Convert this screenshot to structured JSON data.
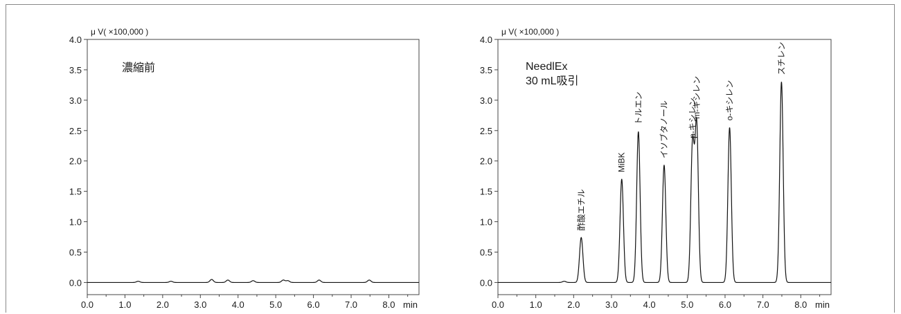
{
  "chart_data": [
    {
      "type": "line",
      "unit_label": "μ V( ×100,000 )",
      "xunit": "min",
      "xlim": [
        0,
        8.8
      ],
      "ylim": [
        -0.2,
        4.0
      ],
      "x_ticks": [
        "0.0",
        "1.0",
        "2.0",
        "3.0",
        "4.0",
        "5.0",
        "6.0",
        "7.0",
        "8.0"
      ],
      "y_ticks": [
        "0.0",
        "0.5",
        "1.0",
        "1.5",
        "2.0",
        "2.5",
        "3.0",
        "3.5",
        "4.0"
      ],
      "annotations": [
        "濃縮前"
      ],
      "series": [
        {
          "baseline": 0.0,
          "peaks": [
            {
              "time": 1.35,
              "height": 0.02
            },
            {
              "time": 2.22,
              "height": 0.02
            },
            {
              "time": 3.3,
              "height": 0.05
            },
            {
              "time": 3.73,
              "height": 0.04
            },
            {
              "time": 4.4,
              "height": 0.03
            },
            {
              "time": 5.2,
              "height": 0.04
            },
            {
              "time": 5.32,
              "height": 0.03
            },
            {
              "time": 6.15,
              "height": 0.04
            },
            {
              "time": 7.48,
              "height": 0.04
            }
          ]
        }
      ],
      "peak_labels": []
    },
    {
      "type": "line",
      "unit_label": "μ V( ×100,000 )",
      "xunit": "min",
      "xlim": [
        0,
        8.8
      ],
      "ylim": [
        -0.2,
        4.0
      ],
      "x_ticks": [
        "0.0",
        "1.0",
        "2.0",
        "3.0",
        "4.0",
        "5.0",
        "6.0",
        "7.0",
        "8.0"
      ],
      "y_ticks": [
        "0.0",
        "0.5",
        "1.0",
        "1.5",
        "2.0",
        "2.5",
        "3.0",
        "3.5",
        "4.0"
      ],
      "annotations": [
        "NeedlEx",
        "30 mL吸引"
      ],
      "series": [
        {
          "baseline": 0.0,
          "peaks": [
            {
              "time": 1.75,
              "height": 0.02
            },
            {
              "time": 2.2,
              "height": 0.74
            },
            {
              "time": 3.27,
              "height": 1.7
            },
            {
              "time": 3.71,
              "height": 2.48
            },
            {
              "time": 4.39,
              "height": 1.93
            },
            {
              "time": 5.14,
              "height": 2.26
            },
            {
              "time": 5.25,
              "height": 2.58
            },
            {
              "time": 6.12,
              "height": 2.55
            },
            {
              "time": 7.49,
              "height": 3.3
            }
          ]
        }
      ],
      "peak_labels": [
        {
          "text": "酢酸エチル",
          "time": 2.2,
          "height": 0.74
        },
        {
          "text": "MiBK",
          "time": 3.27,
          "height": 1.7
        },
        {
          "text": "トルエン",
          "time": 3.71,
          "height": 2.48
        },
        {
          "text": "イソブタノール",
          "time": 4.39,
          "height": 1.93
        },
        {
          "text": "p-キシレン",
          "time": 5.14,
          "height": 2.26
        },
        {
          "text": "m-キシレン",
          "time": 5.25,
          "height": 2.58
        },
        {
          "text": "o-キシレン",
          "time": 6.12,
          "height": 2.55
        },
        {
          "text": "スチレン",
          "time": 7.49,
          "height": 3.3
        }
      ]
    }
  ]
}
